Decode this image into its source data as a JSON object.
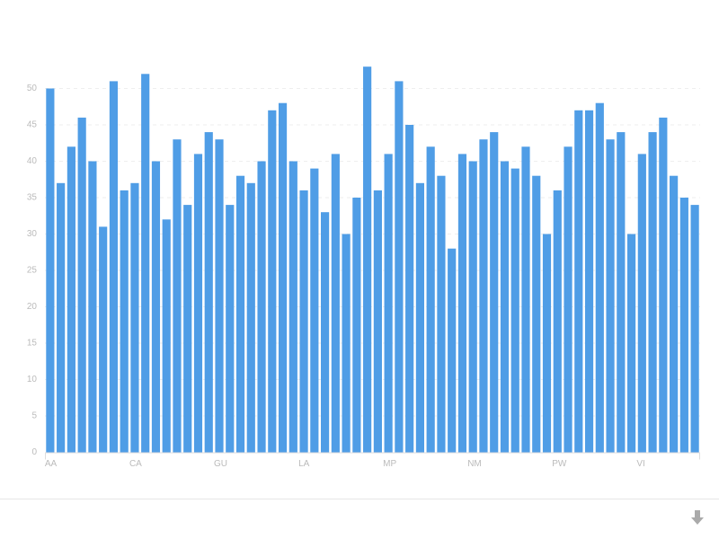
{
  "chart_data": {
    "type": "bar",
    "categories": [
      "AA",
      null,
      null,
      null,
      null,
      null,
      null,
      null,
      "CA",
      null,
      null,
      null,
      null,
      null,
      null,
      null,
      "GU",
      null,
      null,
      null,
      null,
      null,
      null,
      null,
      "LA",
      null,
      null,
      null,
      null,
      null,
      null,
      null,
      "MP",
      null,
      null,
      null,
      null,
      null,
      null,
      null,
      "NM",
      null,
      null,
      null,
      null,
      null,
      null,
      null,
      "PW",
      null,
      null,
      null,
      null,
      null,
      null,
      null,
      "VI",
      null,
      null,
      null,
      null,
      null
    ],
    "values": [
      50,
      37,
      42,
      46,
      40,
      31,
      51,
      36,
      37,
      52,
      40,
      32,
      43,
      34,
      41,
      44,
      43,
      34,
      38,
      37,
      40,
      47,
      48,
      40,
      36,
      39,
      33,
      41,
      30,
      35,
      53,
      36,
      41,
      51,
      45,
      37,
      42,
      38,
      28,
      41,
      40,
      43,
      44,
      40,
      39,
      42,
      38,
      30,
      36,
      42,
      47,
      47,
      48,
      43,
      44,
      30,
      41,
      44,
      46,
      38,
      35,
      34
    ],
    "color": "#4f9de6",
    "ylim": [
      0,
      55
    ],
    "yticks": [
      0,
      5,
      10,
      15,
      20,
      25,
      30,
      35,
      40,
      45,
      50
    ],
    "grid": true
  }
}
